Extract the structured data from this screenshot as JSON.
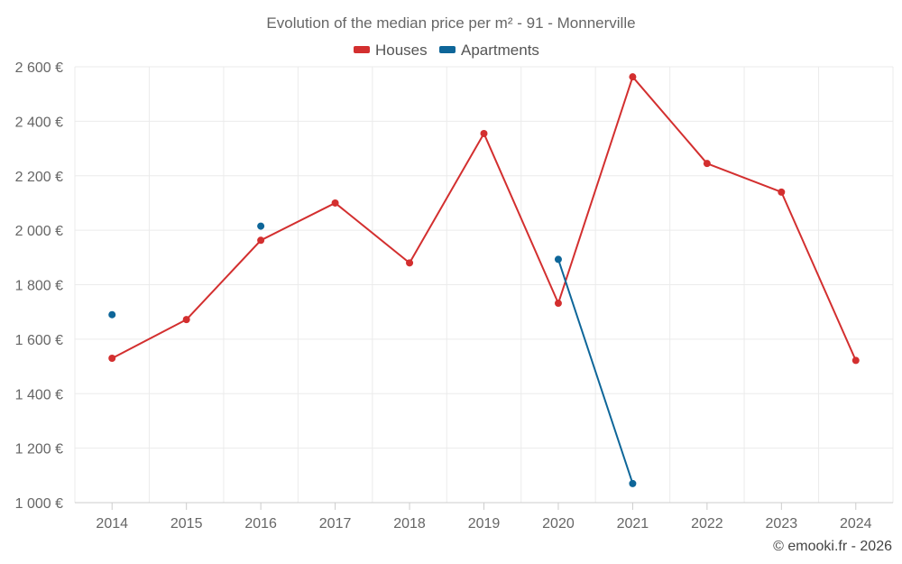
{
  "chart_data": {
    "type": "line",
    "title": "Evolution of the median price per m² - 91 - Monnerville",
    "categories": [
      "2014",
      "2015",
      "2016",
      "2017",
      "2018",
      "2019",
      "2020",
      "2021",
      "2022",
      "2023",
      "2024"
    ],
    "series": [
      {
        "name": "Houses",
        "color": "#d32f2f",
        "values": [
          1530,
          1672,
          1963,
          2100,
          1880,
          2355,
          1732,
          2563,
          2245,
          2140,
          1522
        ]
      },
      {
        "name": "Apartments",
        "color": "#0e6699",
        "values": [
          1690,
          null,
          2015,
          null,
          null,
          null,
          1893,
          1070,
          null,
          null,
          null
        ]
      }
    ],
    "ylim": [
      1000,
      2600
    ],
    "yticks": [
      1000,
      1200,
      1400,
      1600,
      1800,
      2000,
      2200,
      2400,
      2600
    ],
    "ytick_labels": [
      "1 000 €",
      "1 200 €",
      "1 400 €",
      "1 600 €",
      "1 800 €",
      "2 000 €",
      "2 200 €",
      "2 400 €",
      "2 600 €"
    ],
    "xlabel": "",
    "ylabel": "",
    "grid": true,
    "legend_position": "top-center"
  },
  "credit": "© emooki.fr - 2026"
}
